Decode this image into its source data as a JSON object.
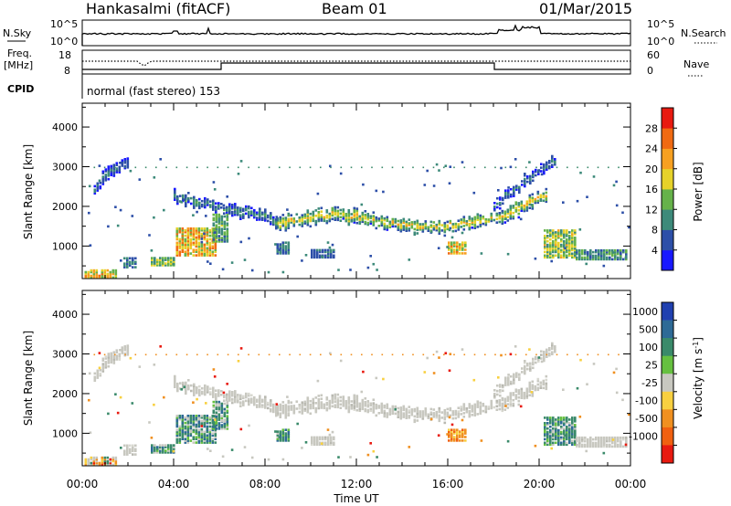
{
  "header": {
    "station": "Hankasalmi (fitACF)",
    "beam": "Beam 01",
    "date": "01/Mar/2015"
  },
  "status_panels": {
    "nsky_label": "N.Sky",
    "nsky_ticks": [
      "10^5",
      "10^0"
    ],
    "nsearch_label": "N.Search",
    "nsearch_ticks": [
      "10^5",
      "10^0"
    ],
    "freq_label_line1": "Freq.",
    "freq_label_line2": "[MHz]",
    "freq_ticks": [
      "18",
      "8"
    ],
    "nave_label": "Nave",
    "nave_ticks": [
      "60",
      "0"
    ],
    "cpid_label": "CPID",
    "cpid_text": "normal (fast stereo) 153"
  },
  "power_scale": {
    "label": "Power [dB]",
    "ticks": [
      "28",
      "24",
      "20",
      "16",
      "12",
      "8",
      "4"
    ],
    "colors": [
      "#1818ff",
      "#2d4fa8",
      "#3d8a7a",
      "#66b24a",
      "#e6d22a",
      "#f7a021",
      "#f06a12",
      "#e81a10"
    ]
  },
  "velocity_scale": {
    "label": "Velocity [m s",
    "label_sup": "-1",
    "label_end": "]",
    "ticks": [
      "1000",
      "500",
      "100",
      "25",
      "-25",
      "-100",
      "-500",
      "-1000"
    ],
    "colors": [
      "#2040b0",
      "#2e6a96",
      "#3a8a6a",
      "#66c040",
      "#c8c8c0",
      "#f8d040",
      "#f09020",
      "#f06010",
      "#e81a10"
    ]
  },
  "chart_data": {
    "type": "heatmap",
    "panels": [
      "power",
      "velocity"
    ],
    "xlabel": "Time UT",
    "ylabel": "Slant Range [km]",
    "x_ticks": [
      "00:00",
      "04:00",
      "08:00",
      "12:00",
      "16:00",
      "20:00",
      "00:00"
    ],
    "y_ticks": [
      "4000",
      "3000",
      "2000",
      "1000"
    ],
    "xlim_hours": [
      0,
      24
    ],
    "ylim_km": [
      180,
      4600
    ],
    "bands": [
      {
        "name": "main",
        "t": [
          8.5,
          10,
          11,
          12.5,
          14,
          15.5,
          17,
          18.5,
          20.3
        ],
        "r": [
          1550,
          1700,
          1800,
          1650,
          1500,
          1450,
          1550,
          1800,
          2300
        ],
        "thick": 280,
        "p": 18,
        "v": "gray"
      },
      {
        "name": "morning",
        "t": [
          4.0,
          5.0,
          6.0,
          7.0,
          7.8,
          8.5
        ],
        "r": [
          2250,
          2100,
          1950,
          1850,
          1750,
          1600
        ],
        "thick": 220,
        "p": 10,
        "v": "gray"
      },
      {
        "name": "early_arc",
        "t": [
          0.5,
          1.2,
          2.0
        ],
        "r": [
          2400,
          2900,
          3150
        ],
        "thick": 250,
        "p": 8,
        "v": "gray"
      },
      {
        "name": "late_arc",
        "t": [
          18.0,
          19.3,
          20.7
        ],
        "r": [
          2000,
          2600,
          3150
        ],
        "thick": 230,
        "p": 8,
        "v": "gray"
      }
    ],
    "patches": [
      {
        "t": [
          4.1,
          5.8
        ],
        "r": [
          750,
          1450
        ],
        "p": 24,
        "v": "green"
      },
      {
        "t": [
          5.7,
          6.4
        ],
        "r": [
          1100,
          1800
        ],
        "p": 14,
        "v": "green"
      },
      {
        "t": [
          16.0,
          16.8
        ],
        "r": [
          800,
          1100
        ],
        "p": 22,
        "v": "orange"
      },
      {
        "t": [
          20.2,
          21.6
        ],
        "r": [
          700,
          1400
        ],
        "p": 18,
        "v": "green"
      },
      {
        "t": [
          21.6,
          23.8
        ],
        "r": [
          650,
          900
        ],
        "p": 12,
        "v": "gray"
      },
      {
        "t": [
          0.1,
          1.5
        ],
        "r": [
          190,
          380
        ],
        "p": 22,
        "v": "mix"
      },
      {
        "t": [
          3.0,
          4.0
        ],
        "r": [
          500,
          700
        ],
        "p": 16,
        "v": "green"
      },
      {
        "t": [
          1.8,
          2.4
        ],
        "r": [
          450,
          700
        ],
        "p": 10,
        "v": "gray"
      },
      {
        "t": [
          8.5,
          9.0
        ],
        "r": [
          800,
          1100
        ],
        "p": 10,
        "v": "green"
      },
      {
        "t": [
          10.0,
          11.0
        ],
        "r": [
          700,
          900
        ],
        "p": 8,
        "v": "gray"
      }
    ]
  }
}
